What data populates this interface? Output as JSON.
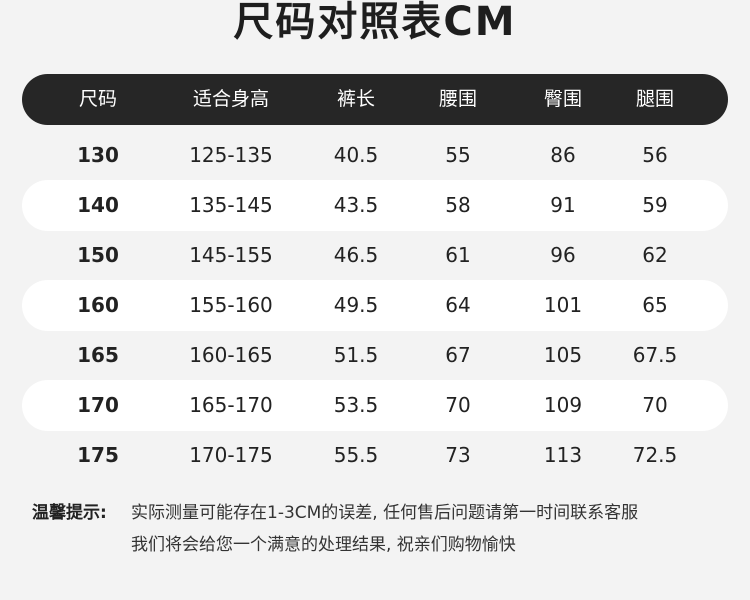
{
  "title": "尺码对照表CM",
  "columns": [
    "尺码",
    "适合身高",
    "裤长",
    "腰围",
    "臀围",
    "腿围"
  ],
  "rows": [
    [
      "130",
      "125-135",
      "40.5",
      "55",
      "86",
      "56"
    ],
    [
      "140",
      "135-145",
      "43.5",
      "58",
      "91",
      "59"
    ],
    [
      "150",
      "145-155",
      "46.5",
      "61",
      "96",
      "62"
    ],
    [
      "160",
      "155-160",
      "49.5",
      "64",
      "101",
      "65"
    ],
    [
      "165",
      "160-165",
      "51.5",
      "67",
      "105",
      "67.5"
    ],
    [
      "170",
      "165-170",
      "53.5",
      "70",
      "109",
      "70"
    ],
    [
      "175",
      "170-175",
      "55.5",
      "73",
      "113",
      "72.5"
    ]
  ],
  "note": {
    "label": "温馨提示:",
    "line1": "实际测量可能存在1-3CM的误差, 任何售后问题请第一时间联系客服",
    "line2": "我们将会给您一个满意的处理结果, 祝亲们购物愉快"
  },
  "colors": {
    "background": "#f3f3f3",
    "header": "#262626",
    "stripe": "#ffffff"
  }
}
